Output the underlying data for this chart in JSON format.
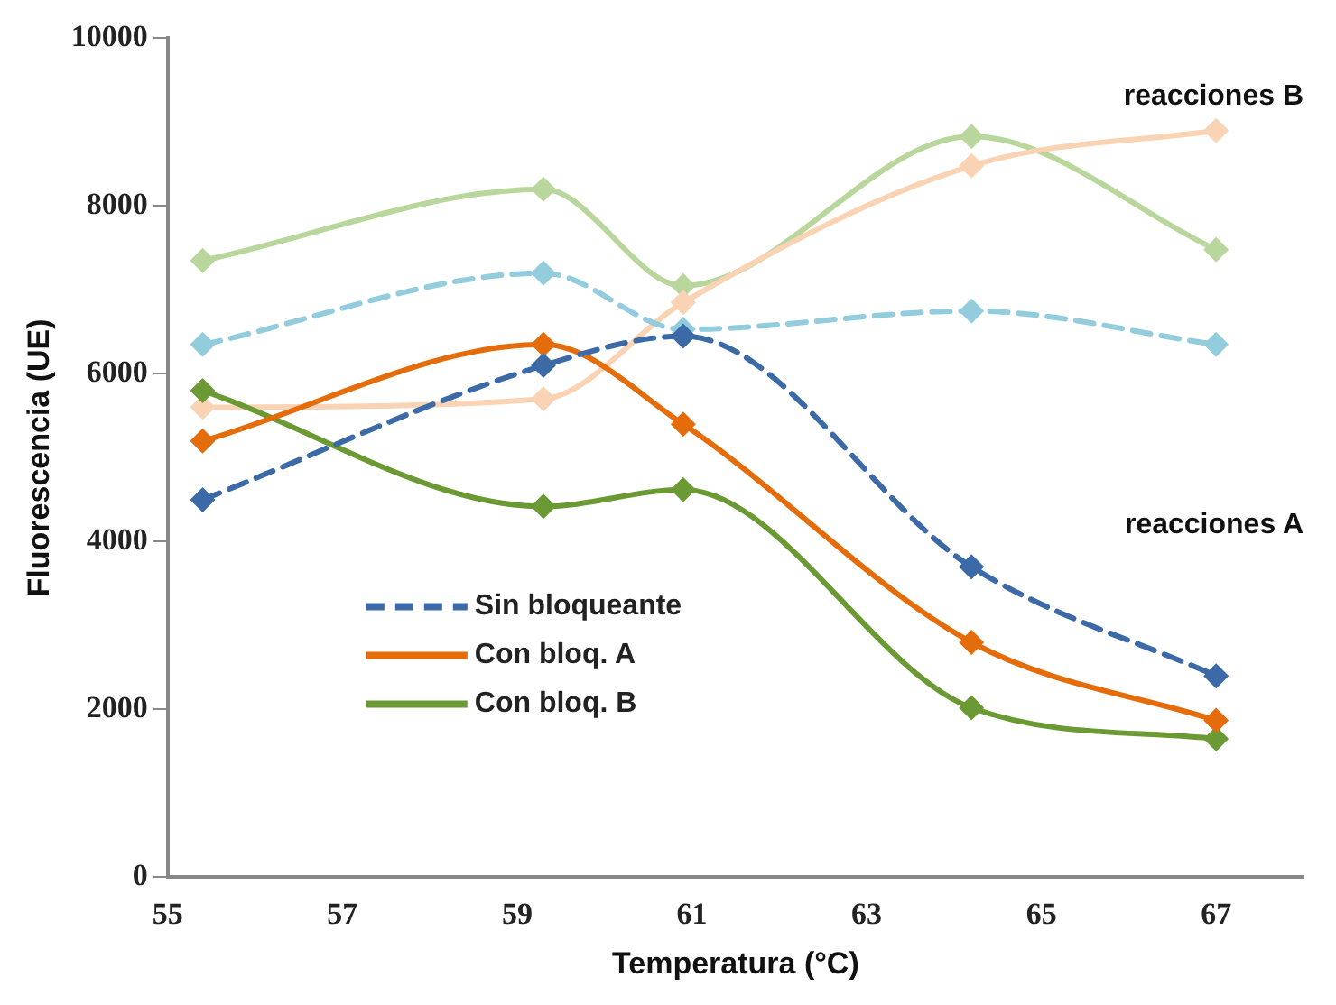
{
  "chart_data": {
    "type": "line",
    "xlabel": "Temperatura (°C)",
    "ylabel": "Fluorescencia (UE)",
    "x": [
      55.4,
      59.3,
      60.9,
      64.2,
      67
    ],
    "xlim": [
      55,
      68
    ],
    "xticks": [
      55,
      57,
      59,
      61,
      63,
      65,
      67
    ],
    "ylim": [
      0,
      10000
    ],
    "yticks": [
      0,
      2000,
      4000,
      6000,
      8000,
      10000
    ],
    "grid": false,
    "legend": "bottom left",
    "marker": "diamond",
    "annotations": [
      "reacciones B",
      "reacciones A"
    ],
    "series": [
      {
        "name": "Sin bloqueante",
        "color": "#3c6aa6",
        "line_style": "dashed",
        "values": [
          4500,
          6100,
          6450,
          3700,
          2400
        ]
      },
      {
        "name": "Con bloq. A",
        "color": "#e46c0a",
        "line_style": "solid",
        "values": [
          5200,
          6350,
          5400,
          2800,
          1870
        ]
      },
      {
        "name": "Con bloq. B",
        "color": "#6b9a35",
        "line_style": "solid",
        "values": [
          5800,
          4420,
          4620,
          2020,
          1650
        ]
      },
      {
        "color": "#93cddd",
        "line_style": "dashed",
        "values": [
          6350,
          7200,
          6530,
          6750,
          6350
        ]
      },
      {
        "color": "#fad2b4",
        "line_style": "solid",
        "values": [
          5600,
          5700,
          6850,
          8480,
          8900
        ]
      },
      {
        "color": "#b9d79c",
        "line_style": "solid",
        "values": [
          7350,
          8200,
          7050,
          8830,
          7480
        ]
      }
    ]
  }
}
